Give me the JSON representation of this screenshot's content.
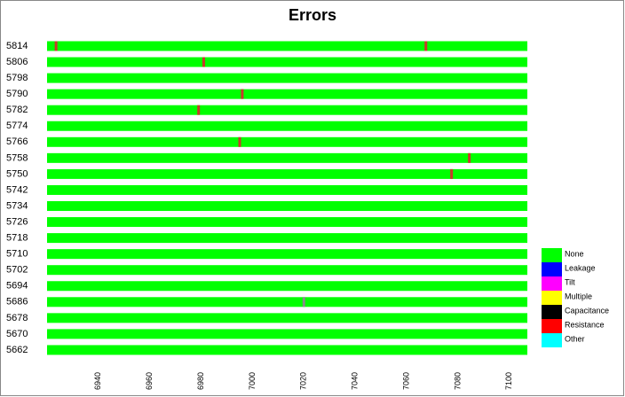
{
  "chart_data": {
    "type": "strip",
    "title": "Errors",
    "categories": [
      "5814",
      "5806",
      "5798",
      "5790",
      "5782",
      "5774",
      "5766",
      "5758",
      "5750",
      "5742",
      "5734",
      "5726",
      "5718",
      "5710",
      "5702",
      "5694",
      "5686",
      "5678",
      "5670",
      "5662"
    ],
    "xlim": [
      6920,
      7107
    ],
    "xticks": [
      6940,
      6960,
      6980,
      7000,
      7020,
      7040,
      7060,
      7080,
      7100
    ],
    "events": [
      {
        "row": "5814",
        "x": 6923.5,
        "color": "#c83a2a"
      },
      {
        "row": "5814",
        "x": 7067.5,
        "color": "#c83a2a"
      },
      {
        "row": "5806",
        "x": 6981,
        "color": "#c83a2a"
      },
      {
        "row": "5790",
        "x": 6996,
        "color": "#c83a2a"
      },
      {
        "row": "5782",
        "x": 6979,
        "color": "#c83a2a"
      },
      {
        "row": "5766",
        "x": 6995,
        "color": "#c83a2a"
      },
      {
        "row": "5758",
        "x": 7084.4,
        "color": "#c83a2a"
      },
      {
        "row": "5750",
        "x": 7077.5,
        "color": "#c83a2a"
      },
      {
        "row": "5686",
        "x": 7020,
        "color": "#8a8a8a"
      }
    ],
    "legend": [
      {
        "name": "None",
        "color": "#00ff00"
      },
      {
        "name": "Leakage",
        "color": "#0000ff"
      },
      {
        "name": "Tilt",
        "color": "#ff00ff"
      },
      {
        "name": "Multiple",
        "color": "#ffff00"
      },
      {
        "name": "Capacitance",
        "color": "#000000"
      },
      {
        "name": "Resistance",
        "color": "#ff0000"
      },
      {
        "name": "Other",
        "color": "#00ffff"
      }
    ]
  }
}
